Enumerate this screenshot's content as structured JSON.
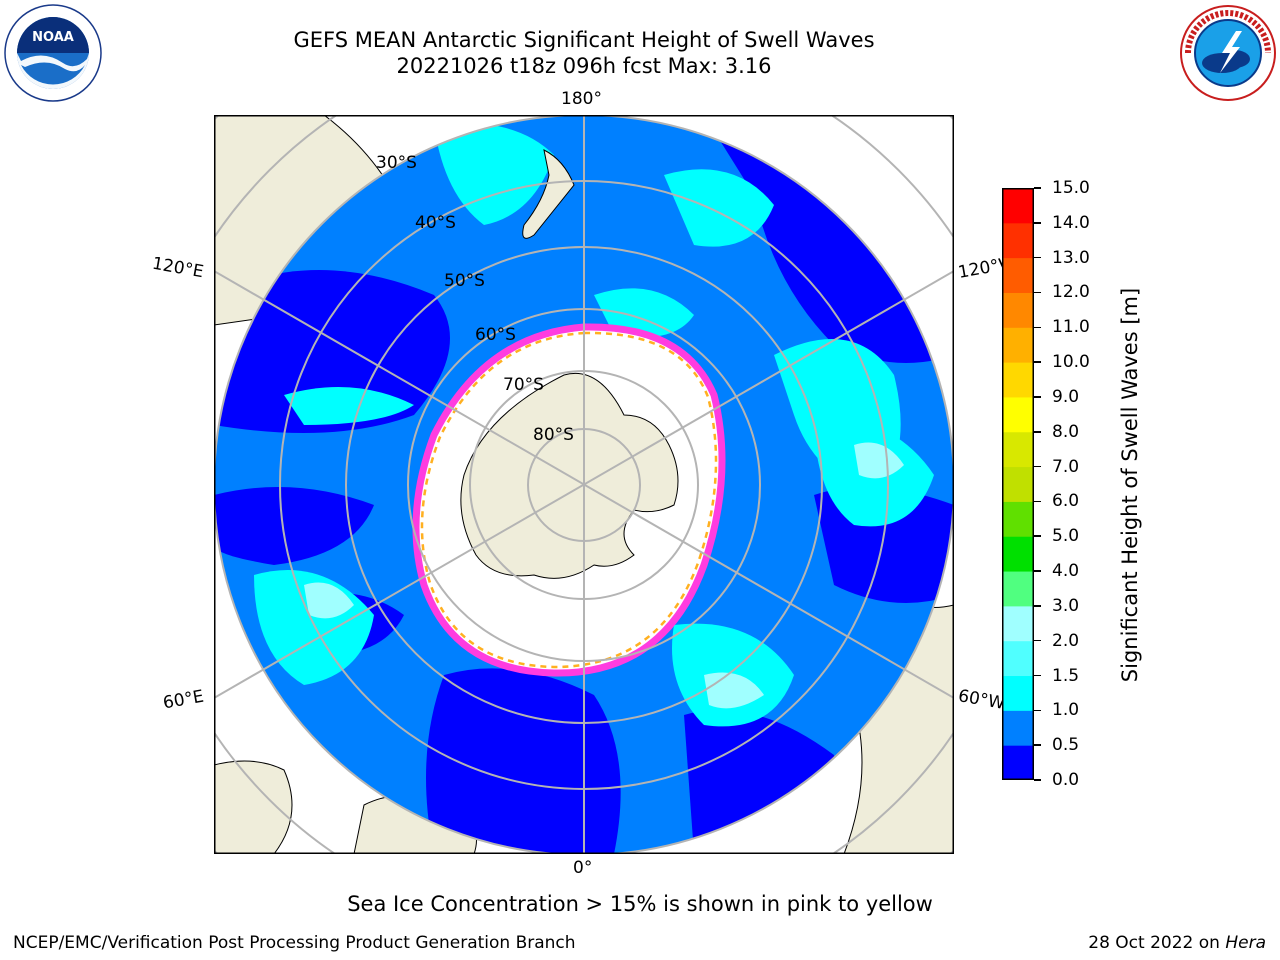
{
  "header": {
    "title_line1": "GEFS MEAN Antarctic Significant Height of Swell Waves",
    "title_line2": "20221026 t18z 096h fcst   Max: 3.16"
  },
  "logos": {
    "noaa": {
      "icon": "noaa-logo-icon",
      "text": "NOAA"
    },
    "nws": {
      "icon": "nws-logo-icon"
    }
  },
  "map": {
    "projection": "south-polar-stereographic",
    "longitude_labels": {
      "top": "180°",
      "upper_left": "120°E",
      "upper_right": "120°W",
      "lower_left": "60°E",
      "lower_right": "60°W",
      "bottom": "0°"
    },
    "latitude_labels": [
      "30°S",
      "40°S",
      "50°S",
      "60°S",
      "70°S",
      "80°S"
    ],
    "colors": {
      "land": "#efedda",
      "sea_ice": "#ffffff",
      "gridlines": "#b4b4b4",
      "coastline": "#000000",
      "ice_edge": [
        "#ff3ce0",
        "#ffb020",
        "#ffe040"
      ]
    }
  },
  "colorbar": {
    "label": "Significant Height of Swell Waves [m]",
    "ticks": [
      "0.0",
      "0.5",
      "1.0",
      "1.5",
      "2.0",
      "3.0",
      "4.0",
      "5.0",
      "6.0",
      "7.0",
      "8.0",
      "9.0",
      "10.0",
      "11.0",
      "12.0",
      "13.0",
      "14.0",
      "15.0"
    ],
    "colors": [
      "#0000ff",
      "#0080ff",
      "#00ffff",
      "#50ffff",
      "#a0ffff",
      "#50ff80",
      "#00e000",
      "#60e000",
      "#c0e000",
      "#d8e800",
      "#ffff00",
      "#ffd800",
      "#ffb000",
      "#ff8800",
      "#ff5c00",
      "#ff3000",
      "#ff0000"
    ]
  },
  "footer": {
    "note": "Sea Ice Concentration > 15% is shown in pink to yellow",
    "credit_left": "NCEP/EMC/Verification Post Processing Product Generation Branch",
    "credit_right_text": "28 Oct 2022 on ",
    "credit_right_machine": "Hera"
  }
}
